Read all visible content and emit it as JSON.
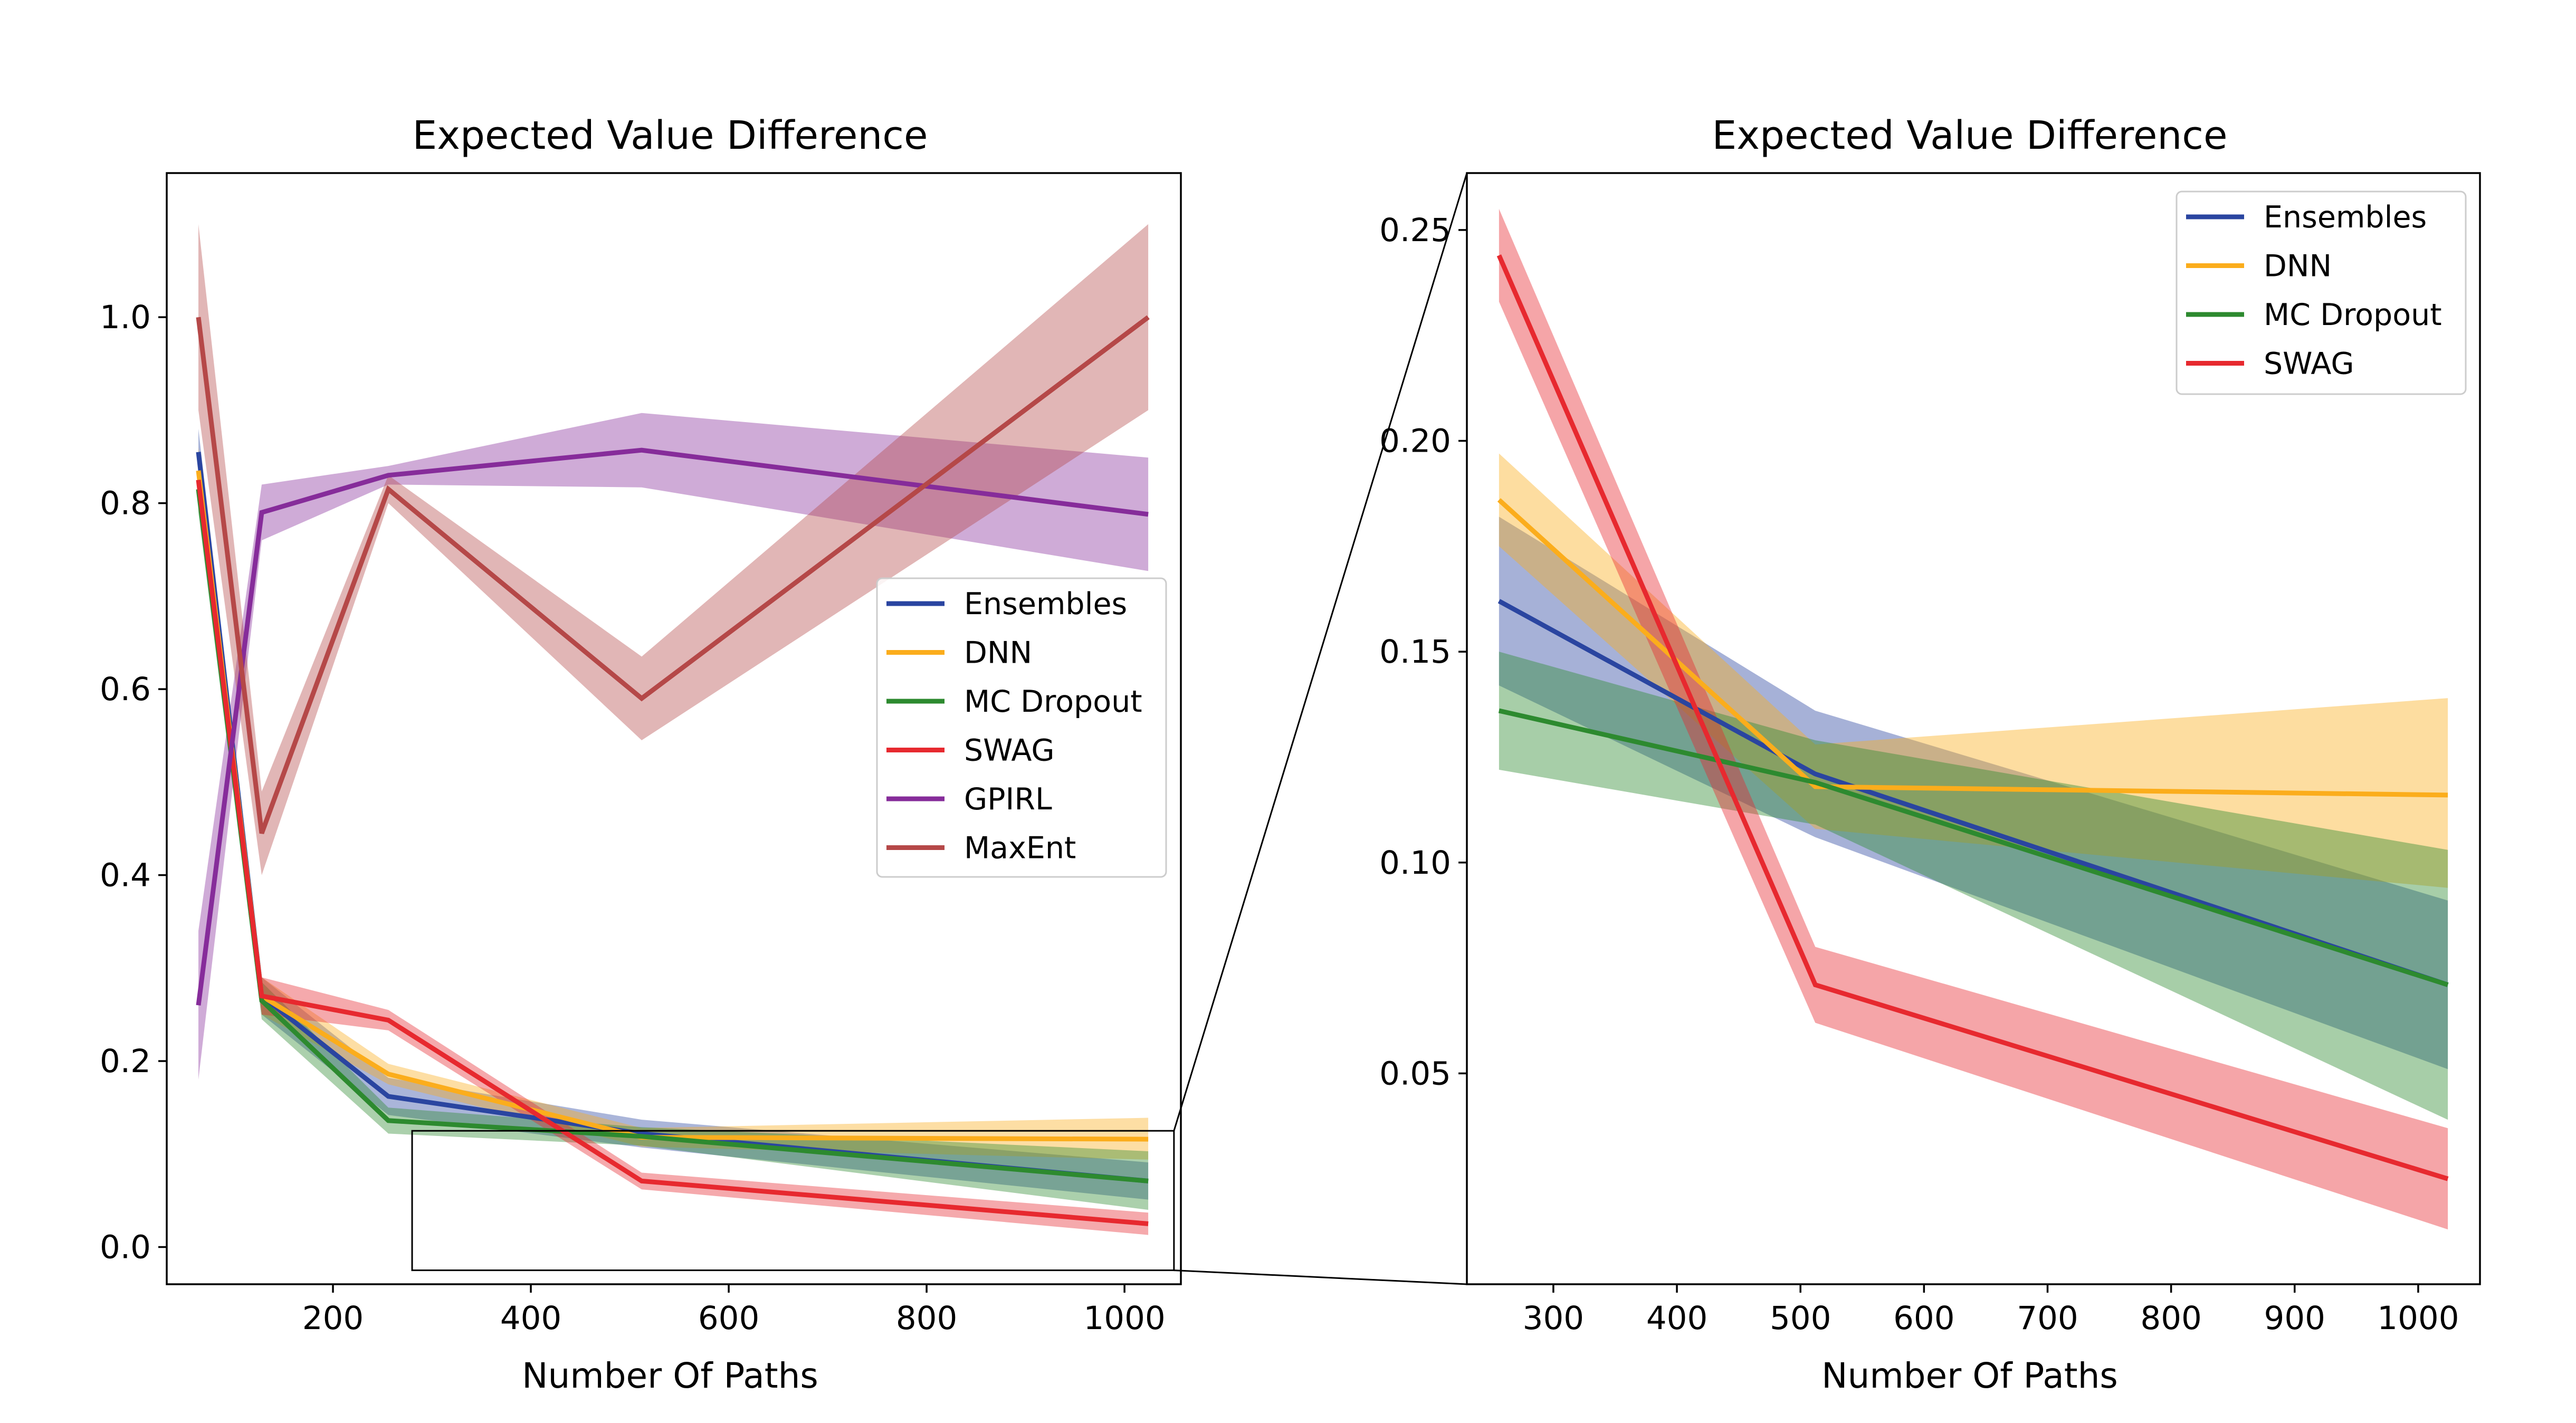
{
  "chart_data": [
    {
      "type": "line",
      "title": "Expected Value Difference",
      "xlabel": "Number Of Paths",
      "ylabel": "",
      "xlim": [
        32,
        1057
      ],
      "ylim": [
        -0.04,
        1.155
      ],
      "xticks": [
        200,
        400,
        600,
        800,
        1000
      ],
      "yticks": [
        0.0,
        0.2,
        0.4,
        0.6,
        0.8,
        1.0
      ],
      "grid": false,
      "legend_position": "center-right",
      "x": [
        64,
        128,
        256,
        512,
        1024
      ],
      "series": [
        {
          "name": "Ensembles",
          "color": "#2a45a0",
          "values": [
            0.855,
            0.27,
            0.162,
            0.122,
            0.071
          ],
          "band_low": [
            0.83,
            0.25,
            0.142,
            0.107,
            0.051
          ],
          "band_high": [
            0.88,
            0.29,
            0.182,
            0.137,
            0.091
          ]
        },
        {
          "name": "DNN",
          "color": "#fbad1c",
          "values": [
            0.835,
            0.27,
            0.186,
            0.118,
            0.116
          ],
          "band_low": [
            0.81,
            0.25,
            0.175,
            0.108,
            0.094
          ],
          "band_high": [
            0.86,
            0.29,
            0.197,
            0.128,
            0.139
          ]
        },
        {
          "name": "MC Dropout",
          "color": "#2d8a2f",
          "values": [
            0.815,
            0.265,
            0.136,
            0.119,
            0.071
          ],
          "band_low": [
            0.79,
            0.245,
            0.122,
            0.109,
            0.04
          ],
          "band_high": [
            0.84,
            0.285,
            0.15,
            0.129,
            0.103
          ]
        },
        {
          "name": "SWAG",
          "color": "#e7292f",
          "values": [
            0.825,
            0.27,
            0.244,
            0.071,
            0.025
          ],
          "band_low": [
            0.8,
            0.25,
            0.233,
            0.062,
            0.013
          ],
          "band_high": [
            0.85,
            0.29,
            0.255,
            0.08,
            0.037
          ]
        },
        {
          "name": "GPIRL",
          "color": "#862c9a",
          "values": [
            0.26,
            0.79,
            0.83,
            0.857,
            0.788
          ],
          "band_low": [
            0.18,
            0.76,
            0.82,
            0.817,
            0.727
          ],
          "band_high": [
            0.34,
            0.82,
            0.84,
            0.897,
            0.849
          ]
        },
        {
          "name": "MaxEnt",
          "color": "#b54848",
          "values": [
            1.0,
            0.445,
            0.815,
            0.59,
            1.0
          ],
          "band_low": [
            0.9,
            0.4,
            0.8,
            0.545,
            0.9
          ],
          "band_high": [
            1.1,
            0.49,
            0.83,
            0.635,
            1.1
          ]
        }
      ],
      "inset_indicator": {
        "x_range": [
          280,
          1050
        ],
        "y_range": [
          -0.025,
          0.125
        ]
      }
    },
    {
      "type": "line",
      "title": "Expected Value Difference",
      "xlabel": "Number Of Paths",
      "ylabel": "",
      "xlim": [
        230,
        1050
      ],
      "ylim": [
        0.0,
        0.2635
      ],
      "xticks": [
        300,
        400,
        500,
        600,
        700,
        800,
        900,
        1000
      ],
      "yticks": [
        0.05,
        0.1,
        0.15,
        0.2,
        0.25
      ],
      "ytick_labels": [
        "0.05",
        "0.10",
        "0.15",
        "0.20",
        "0.25"
      ],
      "grid": false,
      "legend_position": "top-right",
      "x": [
        256,
        512,
        1024
      ],
      "series": [
        {
          "name": "Ensembles",
          "color": "#2a45a0",
          "values": [
            0.162,
            0.121,
            0.071
          ],
          "band_low": [
            0.142,
            0.106,
            0.051
          ],
          "band_high": [
            0.182,
            0.136,
            0.091
          ]
        },
        {
          "name": "DNN",
          "color": "#fbad1c",
          "values": [
            0.186,
            0.118,
            0.116
          ],
          "band_low": [
            0.175,
            0.108,
            0.094
          ],
          "band_high": [
            0.197,
            0.128,
            0.139
          ]
        },
        {
          "name": "MC Dropout",
          "color": "#2d8a2f",
          "values": [
            0.136,
            0.119,
            0.071
          ],
          "band_low": [
            0.122,
            0.109,
            0.039
          ],
          "band_high": [
            0.15,
            0.129,
            0.103
          ]
        },
        {
          "name": "SWAG",
          "color": "#e7292f",
          "values": [
            0.244,
            0.071,
            0.025
          ],
          "band_low": [
            0.233,
            0.062,
            0.013
          ],
          "band_high": [
            0.255,
            0.08,
            0.037
          ]
        }
      ]
    }
  ]
}
